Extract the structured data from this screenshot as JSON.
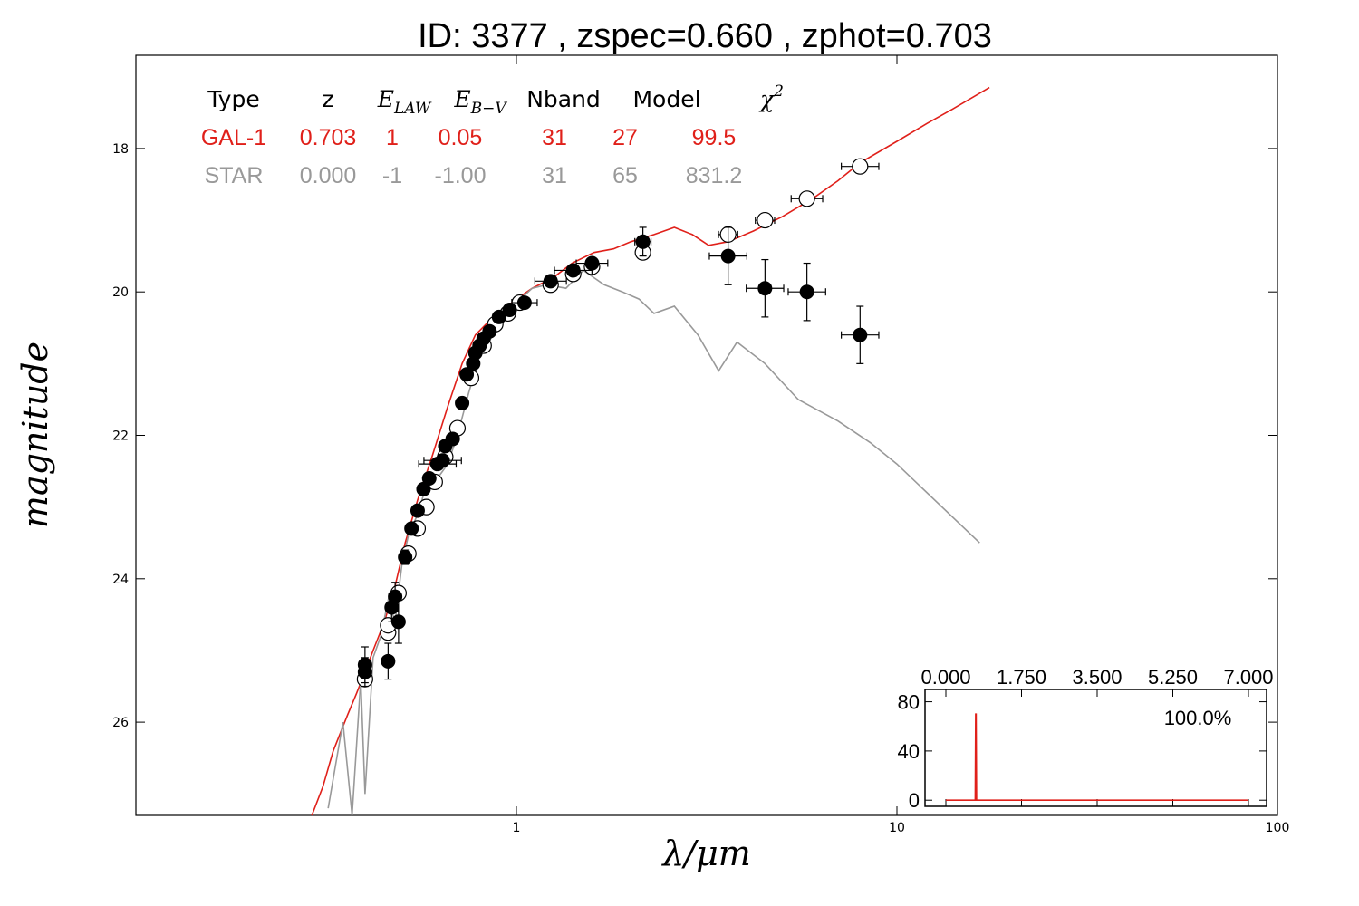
{
  "chart_data": [
    {
      "type": "scatter",
      "title": "ID:  3377  , zspec=0.660 , zphot=0.703",
      "xlabel": "λ/μm",
      "ylabel": "magnitude",
      "xscale": "log",
      "xlim": [
        0.1,
        100
      ],
      "ylim": [
        27.3,
        16.7
      ],
      "y_inverted": true,
      "xticks": [
        "1",
        "10",
        "100"
      ],
      "yticks": [
        "18",
        "20",
        "22",
        "24",
        "26"
      ],
      "grid": false,
      "table": {
        "headers": [
          {
            "text": "Type"
          },
          {
            "text": "z"
          },
          {
            "text": "E",
            "sub": "LAW"
          },
          {
            "text": "E",
            "sub": "B−V"
          },
          {
            "text": "Nband"
          },
          {
            "text": "Model"
          },
          {
            "text": "χ",
            "sup": "2"
          }
        ],
        "rows": [
          {
            "color": "#e0201a",
            "cells": [
              "GAL-1",
              "0.703",
              "1",
              "0.05",
              "31",
              "27",
              "99.5"
            ]
          },
          {
            "color": "#999999",
            "cells": [
              "STAR",
              "0.000",
              "-1",
              "-1.00",
              "31",
              "65",
              "831.2"
            ]
          }
        ]
      },
      "series": [
        {
          "style": "line",
          "color": "#e0201a",
          "x": [
            0.29,
            0.31,
            0.33,
            0.36,
            0.38,
            0.4,
            0.42,
            0.45,
            0.48,
            0.51,
            0.55,
            0.6,
            0.66,
            0.72,
            0.78,
            0.85,
            0.92,
            1.0,
            1.1,
            1.25,
            1.4,
            1.6,
            1.8,
            2.0,
            2.3,
            2.6,
            2.9,
            3.2,
            3.6,
            4.2,
            5.0,
            6.0,
            7.0,
            8.0,
            10.0,
            12.0,
            14.0,
            17.5
          ],
          "y": [
            27.4,
            26.9,
            26.4,
            25.9,
            25.6,
            25.3,
            25.0,
            24.6,
            24.1,
            23.5,
            22.9,
            22.3,
            21.6,
            21.0,
            20.6,
            20.4,
            20.25,
            20.1,
            19.95,
            19.8,
            19.6,
            19.45,
            19.4,
            19.3,
            19.2,
            19.1,
            19.2,
            19.35,
            19.3,
            19.15,
            18.95,
            18.7,
            18.45,
            18.2,
            17.9,
            17.65,
            17.45,
            17.15
          ]
        },
        {
          "style": "line",
          "color": "#999999",
          "x": [
            0.32,
            0.35,
            0.37,
            0.39,
            0.4,
            0.42,
            0.44,
            0.46,
            0.48,
            0.5,
            0.52,
            0.55,
            0.58,
            0.62,
            0.66,
            0.7,
            0.75,
            0.8,
            0.88,
            0.95,
            1.0,
            1.1,
            1.2,
            1.35,
            1.5,
            1.7,
            1.9,
            2.1,
            2.3,
            2.6,
            3.0,
            3.4,
            3.8,
            4.5,
            5.5,
            7.0,
            8.5,
            10.0,
            16.5
          ],
          "y": [
            27.2,
            26.0,
            27.3,
            25.4,
            27.0,
            25.1,
            24.8,
            24.3,
            24.6,
            23.8,
            23.4,
            23.1,
            22.7,
            22.6,
            22.4,
            22.0,
            21.4,
            20.9,
            20.55,
            20.3,
            20.15,
            19.95,
            19.9,
            19.95,
            19.7,
            19.9,
            20.0,
            20.1,
            20.3,
            20.2,
            20.6,
            21.1,
            20.7,
            21.0,
            21.5,
            21.8,
            22.1,
            22.4,
            23.5
          ]
        },
        {
          "style": "points",
          "marker": "filled",
          "name": "observed",
          "x": [
            0.4,
            0.4,
            0.46,
            0.47,
            0.48,
            0.49,
            0.51,
            0.53,
            0.55,
            0.57,
            0.59,
            0.62,
            0.64,
            0.65,
            0.68,
            0.72,
            0.74,
            0.77,
            0.78,
            0.8,
            0.82,
            0.85,
            0.9,
            0.96,
            1.05,
            1.23,
            1.41,
            1.58,
            2.15,
            3.6,
            4.5,
            5.8,
            8.0
          ],
          "y": [
            25.2,
            25.3,
            25.15,
            24.4,
            24.25,
            24.6,
            23.7,
            23.3,
            23.05,
            22.75,
            22.6,
            22.4,
            22.35,
            22.15,
            22.05,
            21.55,
            21.15,
            21.0,
            20.85,
            20.75,
            20.65,
            20.55,
            20.35,
            20.25,
            20.15,
            19.85,
            19.7,
            19.6,
            19.3,
            19.5,
            19.95,
            20.0,
            20.6
          ],
          "xerr_factor": [
            1.03,
            1.03,
            1.03,
            1.02,
            1.02,
            1.03,
            1.03,
            1.02,
            1.02,
            1.02,
            1.02,
            1.12,
            1.12,
            1.03,
            1.03,
            1.02,
            1.03,
            1.02,
            1.02,
            1.02,
            1.02,
            1.03,
            1.02,
            1.03,
            1.08,
            1.1,
            1.12,
            1.1,
            1.05,
            1.12,
            1.12,
            1.12,
            1.12
          ],
          "yerr": [
            0.25,
            0.2,
            0.25,
            0.2,
            0.2,
            0.3,
            0.1,
            0.08,
            0.06,
            0.06,
            0.06,
            0.05,
            0.05,
            0.05,
            0.05,
            0.05,
            0.05,
            0.05,
            0.04,
            0.04,
            0.04,
            0.04,
            0.04,
            0.04,
            0.04,
            0.04,
            0.04,
            0.04,
            0.2,
            0.4,
            0.4,
            0.4,
            0.4
          ]
        },
        {
          "style": "points",
          "marker": "open",
          "name": "model",
          "x": [
            0.4,
            0.46,
            0.46,
            0.49,
            0.52,
            0.55,
            0.58,
            0.61,
            0.65,
            0.7,
            0.76,
            0.82,
            0.88,
            0.95,
            1.02,
            1.23,
            1.41,
            1.58,
            2.15,
            3.6,
            4.5,
            5.8,
            8.0
          ],
          "y": [
            25.4,
            24.75,
            24.65,
            24.2,
            23.65,
            23.3,
            23.0,
            22.65,
            22.3,
            21.9,
            21.2,
            20.75,
            20.45,
            20.3,
            20.15,
            19.9,
            19.75,
            19.65,
            19.45,
            19.2,
            19.0,
            18.7,
            18.25
          ],
          "xerr_factor": [
            1.0,
            1.0,
            1.0,
            1.0,
            1.0,
            1.0,
            1.0,
            1.0,
            1.0,
            1.0,
            1.0,
            1.0,
            1.0,
            1.0,
            1.0,
            1.0,
            1.0,
            1.0,
            1.0,
            1.06,
            1.06,
            1.1,
            1.12
          ]
        }
      ]
    },
    {
      "type": "line",
      "annotation": "100.0%",
      "xlim": [
        0,
        7.0
      ],
      "ylim": [
        -5,
        90
      ],
      "xticks": [
        "0.000",
        "1.750",
        "3.500",
        "5.250",
        "7.000"
      ],
      "yticks": [
        "0",
        "40",
        "80"
      ],
      "series": [
        {
          "color": "#e0201a",
          "x": [
            0.0,
            0.68,
            0.69,
            0.7,
            0.71,
            0.72,
            7.0
          ],
          "y": [
            0,
            0,
            70,
            70,
            0,
            0,
            0
          ]
        }
      ]
    }
  ]
}
